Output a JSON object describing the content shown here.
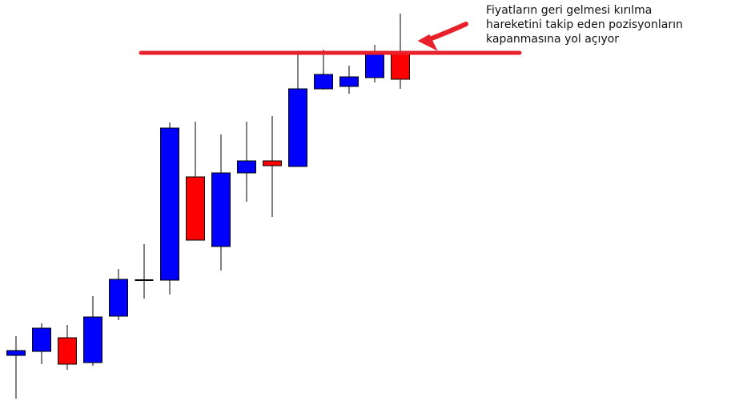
{
  "chart_data": {
    "type": "candlestick",
    "ylim": [
      0,
      500
    ],
    "open": [
      56,
      61,
      78,
      47,
      105,
      150,
      150,
      279,
      192,
      284,
      299,
      292,
      389,
      392,
      403,
      433
    ],
    "high": [
      80,
      96,
      94,
      130,
      164,
      195,
      347,
      348,
      332,
      348,
      355,
      433,
      438,
      418,
      444,
      483
    ],
    "low": [
      2,
      45,
      38,
      43,
      100,
      127,
      132,
      200,
      162,
      248,
      229,
      292,
      388,
      383,
      397,
      389
    ],
    "close": [
      62,
      90,
      45,
      104,
      151,
      150,
      340,
      200,
      284,
      299,
      293,
      389,
      407,
      404,
      433,
      401
    ],
    "up_color": "#0000ff",
    "down_color": "#ff0000",
    "wick_color": "#000000",
    "hline": {
      "value": 434,
      "color": "#e8202a"
    },
    "annotation": [
      "Fiyatların geri gelmesi kırılma",
      "hareketini takip eden pozisyonların",
      "kapanmasına yol açıyor"
    ]
  }
}
